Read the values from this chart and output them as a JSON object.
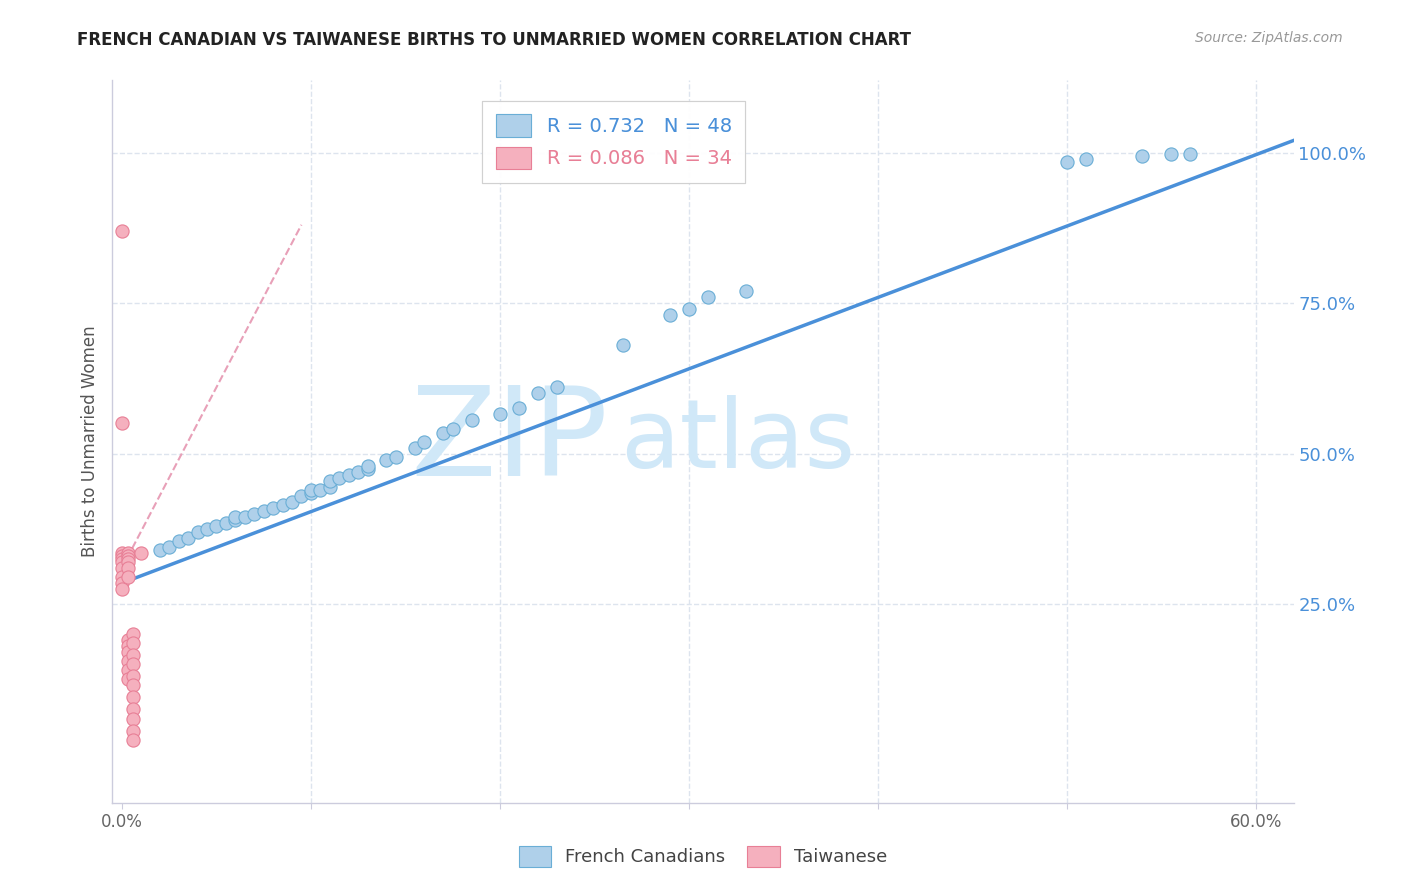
{
  "title": "FRENCH CANADIAN VS TAIWANESE BIRTHS TO UNMARRIED WOMEN CORRELATION CHART",
  "source": "Source: ZipAtlas.com",
  "ylabel": "Births to Unmarried Women",
  "xlim": [
    -0.005,
    0.62
  ],
  "ylim": [
    -0.08,
    1.12
  ],
  "yticks_right": [
    0.25,
    0.5,
    0.75,
    1.0
  ],
  "yticklabels_right": [
    "25.0%",
    "50.0%",
    "75.0%",
    "100.0%"
  ],
  "legend_fc_label": "R = 0.732   N = 48",
  "legend_tw_label": "R = 0.086   N = 34",
  "fc_color": "#afd0ea",
  "tw_color": "#f5b0be",
  "fc_edge_color": "#6aaed6",
  "tw_edge_color": "#e87f96",
  "fc_line_color": "#4a90d9",
  "tw_line_color": "#e8a0b8",
  "watermark_zip": "ZIP",
  "watermark_atlas": "atlas",
  "watermark_color": "#d0e8f8",
  "fc_scatter_x": [
    0.02,
    0.025,
    0.03,
    0.035,
    0.04,
    0.045,
    0.05,
    0.055,
    0.06,
    0.06,
    0.065,
    0.07,
    0.075,
    0.08,
    0.085,
    0.09,
    0.095,
    0.1,
    0.1,
    0.105,
    0.11,
    0.11,
    0.115,
    0.12,
    0.125,
    0.13,
    0.13,
    0.14,
    0.145,
    0.155,
    0.16,
    0.17,
    0.175,
    0.185,
    0.2,
    0.21,
    0.22,
    0.23,
    0.265,
    0.29,
    0.3,
    0.31,
    0.33,
    0.5,
    0.51,
    0.54,
    0.555,
    0.565
  ],
  "fc_scatter_y": [
    0.34,
    0.345,
    0.355,
    0.36,
    0.37,
    0.375,
    0.38,
    0.385,
    0.39,
    0.395,
    0.395,
    0.4,
    0.405,
    0.41,
    0.415,
    0.42,
    0.43,
    0.435,
    0.44,
    0.44,
    0.445,
    0.455,
    0.46,
    0.465,
    0.47,
    0.475,
    0.48,
    0.49,
    0.495,
    0.51,
    0.52,
    0.535,
    0.54,
    0.555,
    0.565,
    0.575,
    0.6,
    0.61,
    0.68,
    0.73,
    0.74,
    0.76,
    0.77,
    0.985,
    0.99,
    0.995,
    0.998,
    0.998
  ],
  "tw_scatter_x": [
    0.0,
    0.0,
    0.0,
    0.0,
    0.0,
    0.0,
    0.0,
    0.0,
    0.0,
    0.0,
    0.003,
    0.003,
    0.003,
    0.003,
    0.003,
    0.003,
    0.003,
    0.003,
    0.003,
    0.003,
    0.003,
    0.003,
    0.006,
    0.006,
    0.006,
    0.006,
    0.006,
    0.006,
    0.006,
    0.006,
    0.006,
    0.006,
    0.006,
    0.01
  ],
  "tw_scatter_y": [
    0.87,
    0.55,
    0.335,
    0.33,
    0.325,
    0.32,
    0.31,
    0.295,
    0.285,
    0.275,
    0.335,
    0.33,
    0.325,
    0.32,
    0.31,
    0.295,
    0.19,
    0.18,
    0.17,
    0.155,
    0.14,
    0.125,
    0.2,
    0.185,
    0.165,
    0.15,
    0.13,
    0.115,
    0.095,
    0.075,
    0.06,
    0.04,
    0.025,
    0.335
  ],
  "fc_trend_x": [
    0.0,
    0.62
  ],
  "fc_trend_y": [
    0.285,
    1.02
  ],
  "tw_trend_x": [
    0.0,
    0.095
  ],
  "tw_trend_y": [
    0.31,
    0.88
  ],
  "background_color": "#ffffff",
  "grid_color": "#dde4ee",
  "spine_color": "#ccccdd"
}
